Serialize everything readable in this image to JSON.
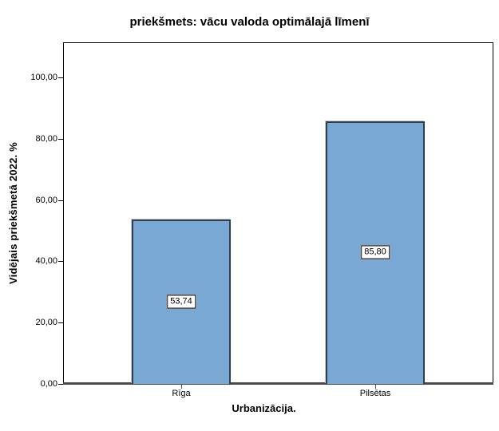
{
  "chart_data": {
    "type": "bar",
    "title": "priekšmets: vācu valoda optimālajā līmenī",
    "xlabel": "Urbanizācija.",
    "ylabel": "Vidējais priekšmetā 2022. %",
    "categories": [
      "Rīga",
      "Pilsētas"
    ],
    "values": [
      53.74,
      85.8
    ],
    "value_labels": [
      "53,74",
      "85,80"
    ],
    "ylim": [
      0,
      100
    ],
    "yticks": [
      0,
      20,
      40,
      60,
      80,
      100
    ],
    "ytick_labels": [
      "0,00",
      "20,00",
      "40,00",
      "60,00",
      "80,00",
      "100,00"
    ],
    "grid": false,
    "legend_position": "none",
    "bar_color": "#7aa8d5",
    "bar_border_color": "#333f4d",
    "axis_line_color": "#4a4a4a",
    "frame_color": "#000000",
    "background_color": "#ffffff"
  }
}
